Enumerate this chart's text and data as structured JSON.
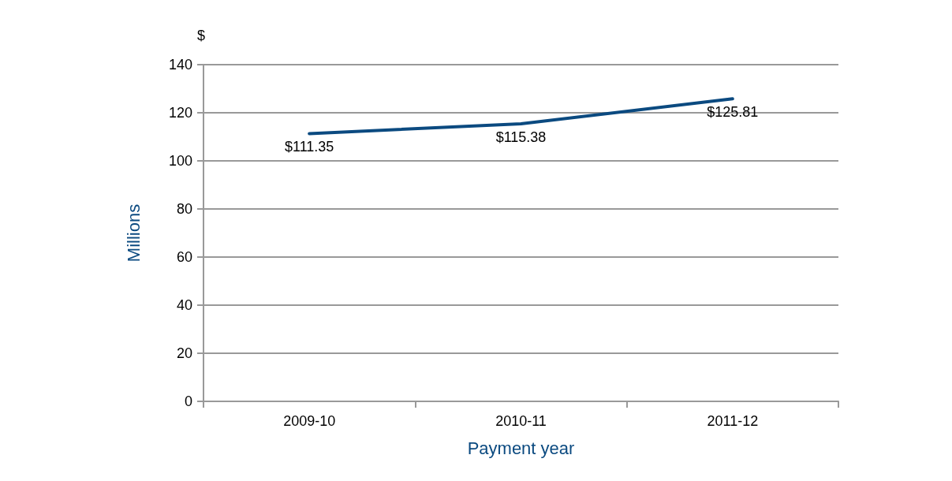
{
  "chart_data": {
    "type": "line",
    "xlabel": "Payment year",
    "ylabel": "Millions",
    "annotations": [
      "$"
    ],
    "categories": [
      "2009-10",
      "2010-11",
      "2011-12"
    ],
    "series": [
      {
        "color": "#0b4a80",
        "values": [
          111.35,
          115.38,
          125.81
        ],
        "value_labels": [
          "$111.35",
          "$115.38",
          "$125.81"
        ]
      }
    ],
    "ylim": [
      0,
      140
    ],
    "yticks": [
      0,
      20,
      40,
      60,
      80,
      100,
      120,
      140
    ],
    "grid": "y",
    "marker": "none",
    "line_style": "solid"
  }
}
